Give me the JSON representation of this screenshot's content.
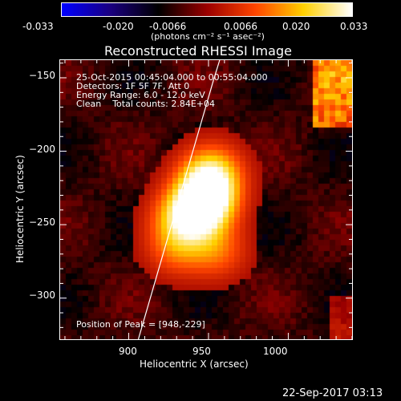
{
  "colorbar": {
    "ticks": [
      "-0.033",
      "-0.020",
      "-0.0066",
      "0.0066",
      "0.020",
      "0.033"
    ],
    "unit_label": "(photons cm⁻² s⁻¹ asec⁻²)",
    "colors": [
      "#0000ff",
      "#1a0080",
      "#000000",
      "#9b0000",
      "#ff4500",
      "#ffd000",
      "#ffffff"
    ]
  },
  "title": "Reconstructed RHESSI Image",
  "info": {
    "time_range": "25-Oct-2015 00:45:04.000 to 00:55:04.000",
    "detectors": "Detectors: 1F 5F 7F, Att 0",
    "energy": "Energy Range: 6.0 - 12.0 keV",
    "clean": "Clean    Total counts: 2.84E+04"
  },
  "peak_label": "Position of Peak = [948,-229]",
  "chart_data": {
    "type": "heatmap",
    "xlabel": "Heliocentric X (arcsec)",
    "ylabel": "Heliocentric Y (arcsec)",
    "xlim": [
      857,
      1040
    ],
    "ylim": [
      -328,
      -138
    ],
    "x_ticks": [
      900,
      950,
      1000
    ],
    "y_ticks": [
      -150,
      -200,
      -250,
      -300
    ],
    "x_tick_labels": [
      "900",
      "950",
      "1000"
    ],
    "y_tick_labels": [
      "−150",
      "−200",
      "−250",
      "−300"
    ],
    "peak": [
      948,
      -229
    ],
    "limb_line": [
      [
        906,
        -328
      ],
      [
        953,
        -152
      ],
      [
        957,
        -138
      ]
    ],
    "sources": [
      {
        "x": 945,
        "y": -241,
        "peak_fraction": 0.9
      },
      {
        "x": 949,
        "y": -229,
        "peak_fraction": 1.0
      },
      {
        "x": 952,
        "y": -214,
        "peak_fraction": 0.75
      },
      {
        "x": 932,
        "y": -246,
        "peak_fraction": 0.55
      },
      {
        "x": 930,
        "y": -266,
        "peak_fraction": 0.45
      },
      {
        "x": 955,
        "y": -268,
        "peak_fraction": 0.45
      }
    ]
  },
  "timestamp": "22-Sep-2017 03:13"
}
